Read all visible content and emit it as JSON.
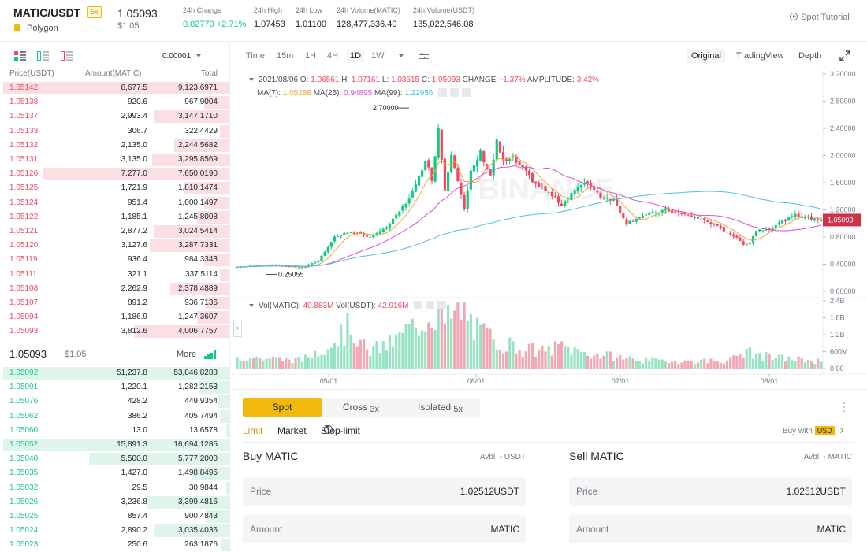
{
  "header": {
    "pair": "MATIC/USDT",
    "leverage": "5x",
    "coin_name": "Polygon",
    "last_price": "1.05093",
    "last_price_usd": "$1.05",
    "stats": [
      {
        "label": "24h Change",
        "value": "0.02770 +2.71%",
        "color": "#0ecb81"
      },
      {
        "label": "24h High",
        "value": "1.07453"
      },
      {
        "label": "24h Low",
        "value": "1.01100"
      },
      {
        "label": "24h Volume(MATIC)",
        "value": "128,477,336.40"
      },
      {
        "label": "24h Volume(USDT)",
        "value": "135,022,546.08"
      }
    ],
    "tutorial": "Spot Tutorial"
  },
  "orderbook": {
    "precision": "0.00001",
    "columns": [
      "Price(USDT)",
      "Amount(MATIC)",
      "Total"
    ],
    "asks": [
      {
        "price": "1.05142",
        "amount": "8,677.5",
        "total": "9,123.6971",
        "depth": 1.0
      },
      {
        "price": "1.05138",
        "amount": "920.6",
        "total": "967.9004",
        "depth": 0.11
      },
      {
        "price": "1.05137",
        "amount": "2,993.4",
        "total": "3,147.1710",
        "depth": 0.33
      },
      {
        "price": "1.05133",
        "amount": "306.7",
        "total": "322.4429",
        "depth": 0.04
      },
      {
        "price": "1.05132",
        "amount": "2,135.0",
        "total": "2,244.5682",
        "depth": 0.24
      },
      {
        "price": "1.05131",
        "amount": "3,135.0",
        "total": "3,295.8569",
        "depth": 0.34
      },
      {
        "price": "1.05126",
        "amount": "7,277.0",
        "total": "7,650.0190",
        "depth": 0.82
      },
      {
        "price": "1.05125",
        "amount": "1,721.9",
        "total": "1,810.1474",
        "depth": 0.2
      },
      {
        "price": "1.05124",
        "amount": "951.4",
        "total": "1,000.1497",
        "depth": 0.11
      },
      {
        "price": "1.05122",
        "amount": "1,185.1",
        "total": "1,245.8008",
        "depth": 0.14
      },
      {
        "price": "1.05121",
        "amount": "2,877.2",
        "total": "3,024.5414",
        "depth": 0.33
      },
      {
        "price": "1.05120",
        "amount": "3,127.6",
        "total": "3,287.7331",
        "depth": 0.35
      },
      {
        "price": "1.05119",
        "amount": "936.4",
        "total": "984.3343",
        "depth": 0.11
      },
      {
        "price": "1.05111",
        "amount": "321.1",
        "total": "337.5114",
        "depth": 0.04
      },
      {
        "price": "1.05108",
        "amount": "2,262.9",
        "total": "2,378.4889",
        "depth": 0.26
      },
      {
        "price": "1.05107",
        "amount": "891.2",
        "total": "936.7136",
        "depth": 0.1
      },
      {
        "price": "1.05094",
        "amount": "1,186.9",
        "total": "1,247.3607",
        "depth": 0.14
      },
      {
        "price": "1.05093",
        "amount": "3,812.6",
        "total": "4,006.7757",
        "depth": 0.42
      }
    ],
    "mid_price": "1.05093",
    "mid_price_usd": "$1.05",
    "more": "More",
    "bids": [
      {
        "price": "1.05092",
        "amount": "51,237.8",
        "total": "53,846.8288",
        "depth": 1.0
      },
      {
        "price": "1.05091",
        "amount": "1,220.1",
        "total": "1,282.2153",
        "depth": 0.13
      },
      {
        "price": "1.05076",
        "amount": "428.2",
        "total": "449.9354",
        "depth": 0.05
      },
      {
        "price": "1.05062",
        "amount": "386.2",
        "total": "405.7494",
        "depth": 0.04
      },
      {
        "price": "1.05060",
        "amount": "13.0",
        "total": "13.6578",
        "depth": 0.01
      },
      {
        "price": "1.05052",
        "amount": "15,891.3",
        "total": "16,694.1285",
        "depth": 1.0
      },
      {
        "price": "1.05040",
        "amount": "5,500.0",
        "total": "5,777.2000",
        "depth": 0.62
      },
      {
        "price": "1.05035",
        "amount": "1,427.0",
        "total": "1,498.8495",
        "depth": 0.16
      },
      {
        "price": "1.05032",
        "amount": "29.5",
        "total": "30.9844",
        "depth": 0.01
      },
      {
        "price": "1.05026",
        "amount": "3,236.8",
        "total": "3,399.4816",
        "depth": 0.36
      },
      {
        "price": "1.05025",
        "amount": "857.4",
        "total": "900.4843",
        "depth": 0.1
      },
      {
        "price": "1.05024",
        "amount": "2,890.2",
        "total": "3,035.4036",
        "depth": 0.33
      },
      {
        "price": "1.05023",
        "amount": "250.6",
        "total": "263.1876",
        "depth": 0.03
      }
    ]
  },
  "chart_toolbar": {
    "intervals": [
      "Time",
      "15m",
      "1H",
      "4H",
      "1D",
      "1W"
    ],
    "selected_interval": "1D",
    "views": [
      "Original",
      "TradingView",
      "Depth"
    ],
    "selected_view": "Original"
  },
  "chart_legend": {
    "date": "2021/08/06",
    "o_label": "O:",
    "o": "1.06561",
    "h_label": "H:",
    "h": "1.07161",
    "l_label": "L:",
    "l": "1.03515",
    "c_label": "C:",
    "c": "1.05093",
    "change_label": "CHANGE:",
    "change": "-1.37%",
    "amp_label": "AMPLITUDE:",
    "amp": "3.42%",
    "ma7_label": "MA(7):",
    "ma7": "1.05288",
    "ma25_label": "MA(25):",
    "ma25": "0.94895",
    "ma99_label": "MA(99):",
    "ma99": "1.22956",
    "vol_matic_label": "Vol(MATIC):",
    "vol_matic": "40.883M",
    "vol_usdt_label": "Vol(USDT):",
    "vol_usdt": "42.916M"
  },
  "chart_data": {
    "type": "candlestick",
    "watermark": "BINANCE",
    "price_axis_ticks": [
      "3.20000",
      "2.80000",
      "2.40000",
      "2.00000",
      "1.60000",
      "1.20000",
      "0.80000",
      "0.40000",
      "0.00000"
    ],
    "volume_axis_ticks": [
      "2.4B",
      "1.8B",
      "1.2B",
      "600M",
      "0.00"
    ],
    "x_ticks": [
      "05/01",
      "06/01",
      "07/01",
      "08/01"
    ],
    "ylim": [
      0,
      3.2
    ],
    "annotations": {
      "high": "2.70000",
      "low": "0.25055"
    },
    "current_price_label": "1.05093",
    "close_keyframes": [
      [
        0,
        0.36
      ],
      [
        10,
        0.39
      ],
      [
        20,
        0.35
      ],
      [
        25,
        0.45
      ],
      [
        30,
        0.8
      ],
      [
        35,
        0.88
      ],
      [
        40,
        0.8
      ],
      [
        45,
        0.9
      ],
      [
        48,
        1.05
      ],
      [
        52,
        1.3
      ],
      [
        55,
        1.55
      ],
      [
        58,
        1.95
      ],
      [
        60,
        1.65
      ],
      [
        62,
        2.4
      ],
      [
        64,
        1.5
      ],
      [
        66,
        2.05
      ],
      [
        68,
        1.65
      ],
      [
        70,
        1.2
      ],
      [
        72,
        1.75
      ],
      [
        75,
        2.05
      ],
      [
        78,
        1.7
      ],
      [
        80,
        2.2
      ],
      [
        82,
        1.9
      ],
      [
        85,
        1.95
      ],
      [
        88,
        1.8
      ],
      [
        92,
        1.58
      ],
      [
        96,
        1.45
      ],
      [
        100,
        1.28
      ],
      [
        104,
        1.5
      ],
      [
        108,
        1.6
      ],
      [
        112,
        1.4
      ],
      [
        116,
        1.35
      ],
      [
        120,
        1.0
      ],
      [
        124,
        1.1
      ],
      [
        128,
        1.15
      ],
      [
        132,
        1.2
      ],
      [
        136,
        1.15
      ],
      [
        140,
        1.1
      ],
      [
        144,
        1.05
      ],
      [
        148,
        0.95
      ],
      [
        152,
        0.85
      ],
      [
        156,
        0.7
      ],
      [
        158,
        0.72
      ],
      [
        160,
        0.9
      ],
      [
        164,
        0.93
      ],
      [
        168,
        1.03
      ],
      [
        172,
        1.12
      ],
      [
        176,
        1.08
      ],
      [
        180,
        1.05
      ]
    ],
    "volume_keyframes": [
      [
        0,
        0.4
      ],
      [
        20,
        0.3
      ],
      [
        30,
        1.0
      ],
      [
        35,
        1.5
      ],
      [
        40,
        0.6
      ],
      [
        48,
        0.9
      ],
      [
        52,
        1.3
      ],
      [
        55,
        1.5
      ],
      [
        58,
        1.8
      ],
      [
        62,
        2.1
      ],
      [
        64,
        1.6
      ],
      [
        66,
        1.8
      ],
      [
        70,
        2.0
      ],
      [
        74,
        1.3
      ],
      [
        78,
        1.1
      ],
      [
        82,
        0.9
      ],
      [
        88,
        0.7
      ],
      [
        95,
        0.6
      ],
      [
        100,
        0.8
      ],
      [
        105,
        0.6
      ],
      [
        110,
        0.5
      ],
      [
        118,
        0.4
      ],
      [
        125,
        0.3
      ],
      [
        140,
        0.25
      ],
      [
        152,
        0.3
      ],
      [
        156,
        0.6
      ],
      [
        160,
        0.5
      ],
      [
        164,
        0.4
      ],
      [
        170,
        0.35
      ],
      [
        180,
        0.25
      ]
    ]
  },
  "trade_panel": {
    "modes": [
      {
        "label": "Spot",
        "sub": ""
      },
      {
        "label": "Cross",
        "sub": "3x"
      },
      {
        "label": "Isolated",
        "sub": "5x"
      }
    ],
    "order_types": [
      "Limit",
      "Market",
      "Stop-limit"
    ],
    "buy_with_label": "Buy with",
    "buy_with_currency": "USD",
    "buy": {
      "title": "Buy MATIC",
      "avbl": "Avbl",
      "avbl_val": "- USDT",
      "price_label": "Price",
      "price": "1.02512",
      "price_unit": "USDT",
      "amount_label": "Amount",
      "amount_unit": "MATIC"
    },
    "sell": {
      "title": "Sell MATIC",
      "avbl": "Avbl",
      "avbl_val": "- MATIC",
      "price_label": "Price",
      "price": "1.02512",
      "price_unit": "USDT",
      "amount_label": "Amount",
      "amount_unit": "MATIC"
    }
  },
  "colors": {
    "up": "#0ecb81",
    "down": "#f6465d",
    "accent": "#f0b90b",
    "ma7": "#f0a43b",
    "ma25": "#d252dc",
    "ma99": "#44c4e8"
  }
}
